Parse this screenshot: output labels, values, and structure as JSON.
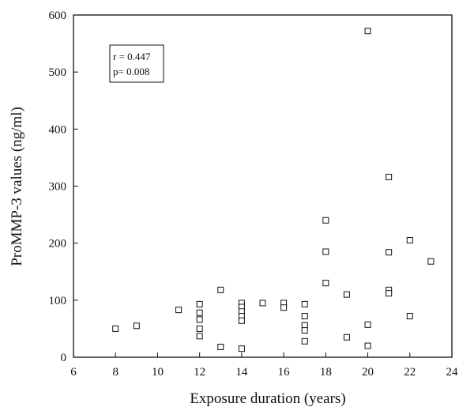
{
  "chart_data": {
    "type": "scatter",
    "xlabel": "Exposure duration (years)",
    "ylabel": "ProMMP-3  values  (ng/ml)",
    "xlim": [
      6,
      24
    ],
    "ylim": [
      0,
      600
    ],
    "xticks": [
      6,
      8,
      10,
      12,
      14,
      16,
      18,
      20,
      22,
      24
    ],
    "yticks": [
      0,
      100,
      200,
      300,
      400,
      500,
      600
    ],
    "grid": false,
    "marker": "open-square",
    "annotation": {
      "r_text": "r = 0.447",
      "p_text": "p= 0.008"
    },
    "points": [
      {
        "x": 8,
        "y": 50
      },
      {
        "x": 9,
        "y": 55
      },
      {
        "x": 11,
        "y": 83
      },
      {
        "x": 12,
        "y": 93
      },
      {
        "x": 12,
        "y": 78
      },
      {
        "x": 12,
        "y": 66
      },
      {
        "x": 12,
        "y": 50
      },
      {
        "x": 12,
        "y": 37
      },
      {
        "x": 13,
        "y": 118
      },
      {
        "x": 13,
        "y": 18
      },
      {
        "x": 14,
        "y": 95
      },
      {
        "x": 14,
        "y": 88
      },
      {
        "x": 14,
        "y": 80
      },
      {
        "x": 14,
        "y": 72
      },
      {
        "x": 14,
        "y": 64
      },
      {
        "x": 14,
        "y": 15
      },
      {
        "x": 15,
        "y": 95
      },
      {
        "x": 16,
        "y": 95
      },
      {
        "x": 16,
        "y": 87
      },
      {
        "x": 17,
        "y": 93
      },
      {
        "x": 17,
        "y": 72
      },
      {
        "x": 17,
        "y": 56
      },
      {
        "x": 17,
        "y": 47
      },
      {
        "x": 17,
        "y": 28
      },
      {
        "x": 18,
        "y": 240
      },
      {
        "x": 18,
        "y": 185
      },
      {
        "x": 18,
        "y": 130
      },
      {
        "x": 19,
        "y": 110
      },
      {
        "x": 19,
        "y": 35
      },
      {
        "x": 20,
        "y": 572
      },
      {
        "x": 20,
        "y": 57
      },
      {
        "x": 20,
        "y": 20
      },
      {
        "x": 21,
        "y": 316
      },
      {
        "x": 21,
        "y": 184
      },
      {
        "x": 21,
        "y": 118
      },
      {
        "x": 21,
        "y": 112
      },
      {
        "x": 22,
        "y": 205
      },
      {
        "x": 22,
        "y": 72
      },
      {
        "x": 23,
        "y": 168
      }
    ]
  }
}
